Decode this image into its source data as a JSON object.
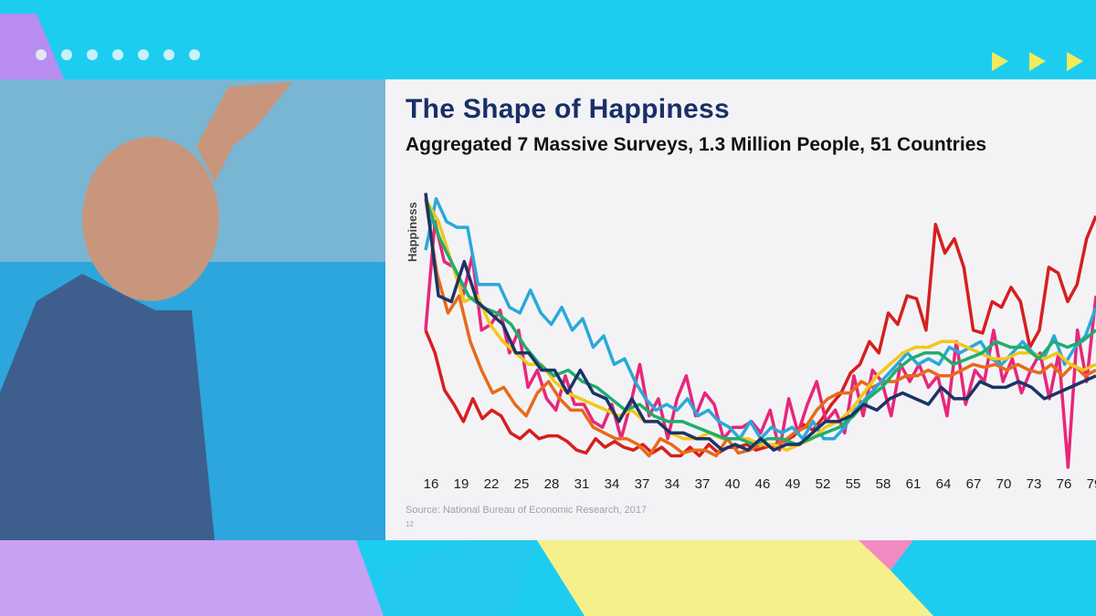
{
  "slide": {
    "title": "The Shape of Happiness",
    "subtitle": "Aggregated 7 Massive Surveys, 1.3 Million People, 51 Countries",
    "source": "Source: National Bureau of Economic Research, 2017",
    "page_number": "12"
  },
  "colors": {
    "background": "#1dcdf0",
    "title": "#1a2f66",
    "slide_bg": "#f3f3f6"
  },
  "chart_data": {
    "type": "line",
    "title": "The Shape of Happiness",
    "subtitle": "Aggregated 7 Massive Surveys, 1.3 Million People, 51 Countries",
    "xlabel": "",
    "ylabel": "Happiness",
    "tick_labels": [
      "16",
      "19",
      "22",
      "25",
      "28",
      "31",
      "34",
      "37",
      "34",
      "37",
      "40",
      "46",
      "49",
      "52",
      "55",
      "58",
      "61",
      "64",
      "67",
      "70",
      "73",
      "76",
      "79"
    ],
    "ylim": [
      0,
      100
    ],
    "grid": false,
    "legend": "none",
    "series": [
      {
        "color": "#d61f1f",
        "values": [
          48,
          40,
          27,
          22,
          16,
          24,
          17,
          20,
          18,
          12,
          10,
          13,
          10,
          11,
          11,
          9,
          6,
          5,
          10,
          7,
          9,
          7,
          6,
          8,
          5,
          7,
          4,
          4,
          7,
          4,
          8,
          5,
          7,
          7,
          8,
          6,
          7,
          8,
          9,
          11,
          15,
          13,
          17,
          22,
          26,
          33,
          36,
          44,
          40,
          54,
          50,
          60,
          59,
          48,
          85,
          75,
          80,
          70,
          48,
          47,
          58,
          56,
          63,
          58,
          42,
          48,
          70,
          68,
          58,
          64,
          80,
          88
        ]
      },
      {
        "color": "#e8267a",
        "values": [
          48,
          86,
          72,
          70,
          60,
          74,
          48,
          50,
          55,
          40,
          48,
          28,
          34,
          24,
          20,
          32,
          22,
          22,
          16,
          14,
          22,
          10,
          22,
          36,
          18,
          24,
          10,
          24,
          32,
          18,
          26,
          22,
          10,
          14,
          14,
          16,
          12,
          20,
          6,
          24,
          12,
          22,
          30,
          16,
          20,
          12,
          32,
          18,
          34,
          30,
          18,
          36,
          30,
          36,
          28,
          32,
          18,
          44,
          22,
          34,
          30,
          48,
          30,
          38,
          26,
          34,
          40,
          24,
          40,
          0,
          48,
          30,
          60
        ]
      },
      {
        "color": "#e86a1a",
        "values": [
          94,
          68,
          54,
          60,
          44,
          34,
          26,
          28,
          22,
          18,
          26,
          30,
          24,
          20,
          20,
          14,
          12,
          10,
          10,
          8,
          4,
          10,
          8,
          5,
          6,
          6,
          4,
          10,
          5,
          6,
          8,
          7,
          9,
          12,
          14,
          20,
          24,
          26,
          26,
          30,
          28,
          30,
          30,
          32,
          32,
          34,
          32,
          32,
          34,
          36,
          35,
          36,
          34,
          36,
          34,
          33,
          36,
          32,
          36,
          32,
          34
        ]
      },
      {
        "color": "#2aa9d8",
        "values": [
          76,
          94,
          86,
          84,
          84,
          64,
          64,
          64,
          56,
          54,
          62,
          54,
          50,
          56,
          48,
          52,
          42,
          46,
          36,
          38,
          30,
          24,
          20,
          22,
          20,
          24,
          18,
          20,
          16,
          14,
          10,
          16,
          10,
          14,
          12,
          14,
          10,
          16,
          10,
          10,
          14,
          20,
          24,
          28,
          32,
          36,
          40,
          36,
          38,
          36,
          42,
          40,
          42,
          44,
          38,
          36,
          40,
          44,
          40,
          38,
          46,
          36,
          42,
          46,
          56
        ]
      },
      {
        "color": "#f1c819",
        "values": [
          94,
          86,
          72,
          58,
          60,
          50,
          44,
          40,
          36,
          36,
          30,
          26,
          24,
          22,
          20,
          18,
          20,
          16,
          16,
          12,
          10,
          10,
          12,
          10,
          10,
          10,
          8,
          8,
          6,
          8,
          10,
          14,
          16,
          20,
          26,
          32,
          36,
          40,
          42,
          42,
          44,
          44,
          42,
          40,
          38,
          38,
          40,
          40,
          38,
          40,
          36,
          34,
          36
        ]
      },
      {
        "color": "#1fae6e",
        "values": [
          94,
          80,
          70,
          60,
          56,
          54,
          50,
          42,
          36,
          32,
          34,
          30,
          28,
          24,
          20,
          22,
          18,
          16,
          16,
          14,
          12,
          10,
          10,
          8,
          10,
          10,
          8,
          10,
          12,
          14,
          18,
          24,
          28,
          34,
          38,
          40,
          40,
          36,
          38,
          40,
          44,
          42,
          42,
          38,
          44,
          42,
          44,
          48
        ]
      },
      {
        "color": "#1b3466",
        "values": [
          96,
          60,
          58,
          72,
          58,
          54,
          50,
          40,
          40,
          34,
          34,
          26,
          34,
          26,
          24,
          16,
          24,
          16,
          16,
          12,
          12,
          10,
          10,
          6,
          8,
          6,
          10,
          6,
          8,
          8,
          12,
          16,
          16,
          18,
          22,
          20,
          24,
          26,
          24,
          22,
          28,
          24,
          24,
          30,
          28,
          28,
          30,
          28,
          24,
          26,
          28,
          30,
          32
        ]
      }
    ]
  }
}
